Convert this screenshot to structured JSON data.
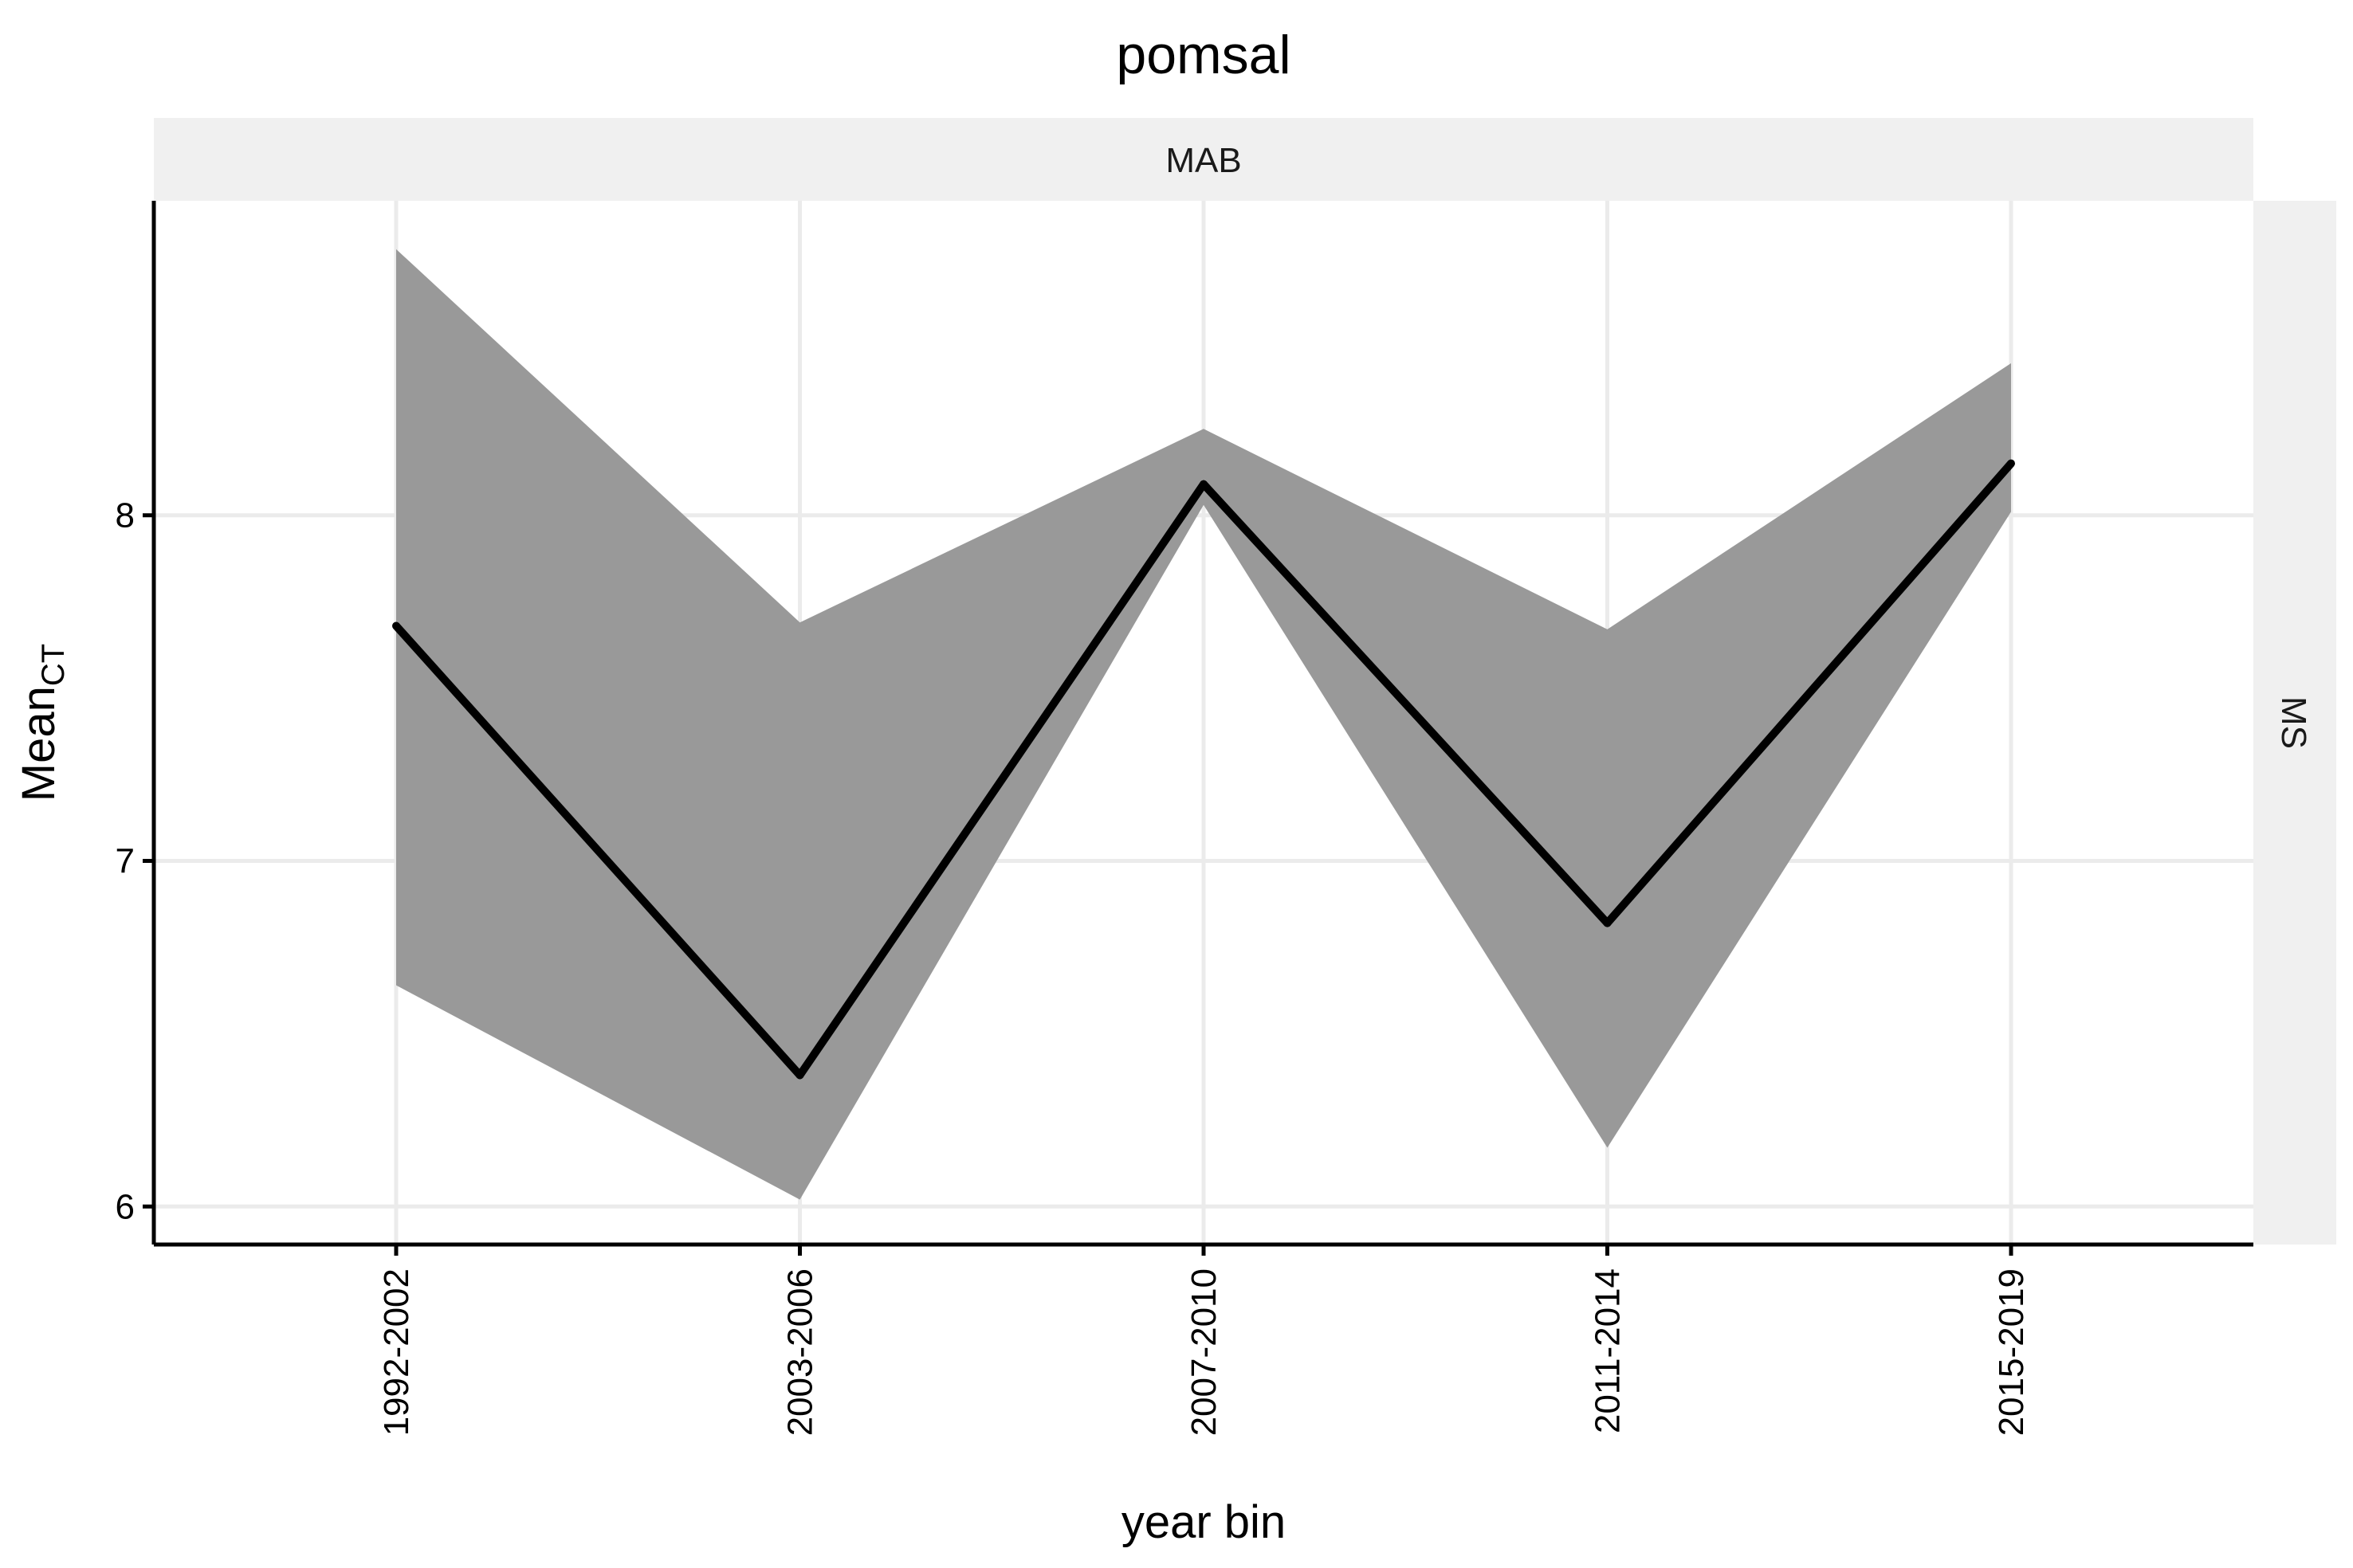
{
  "chart_data": {
    "type": "line",
    "title": "pomsal",
    "facet_top": "MAB",
    "facet_right": "MS",
    "xlabel": "year bin",
    "ylabel_main": "Mean",
    "ylabel_sub": "CT",
    "categories": [
      "1992-2002",
      "2003-2006",
      "2007-2010",
      "2011-2014",
      "2015-2019"
    ],
    "series": [
      {
        "values": [
          7.68,
          6.38,
          8.09,
          6.82,
          8.15
        ],
        "lower": [
          6.64,
          6.02,
          8.03,
          6.17,
          8.01
        ],
        "upper": [
          8.77,
          7.69,
          8.25,
          7.67,
          8.44
        ]
      }
    ],
    "yticks": [
      6,
      7,
      8
    ],
    "ylim": [
      5.89,
      8.91
    ],
    "grid": true,
    "colors": {
      "line": "#000000",
      "band": "#999999",
      "strip": "#f0f0f0",
      "grid": "#ebebeb"
    }
  }
}
